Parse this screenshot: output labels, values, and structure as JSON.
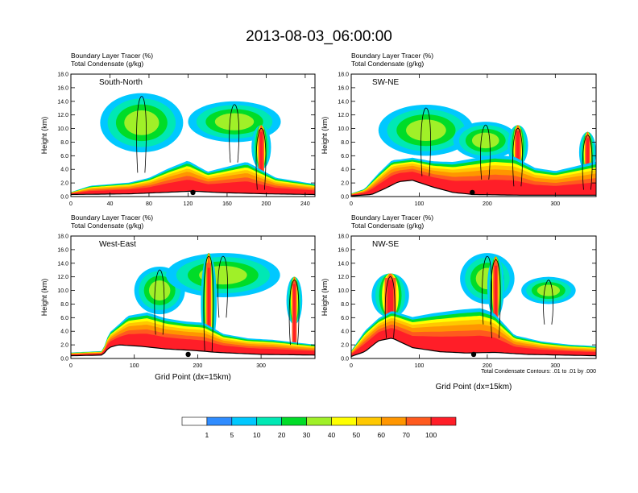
{
  "title": "2013-08-03_06:00:00",
  "panel_field_labels": [
    "Boundary Layer Tracer   (%)",
    "Total Condensate   (g/kg)"
  ],
  "contour_note": "Total Condensate Contours: .01 to .01 by .000",
  "colorbar": {
    "colors": [
      "#ffffff",
      "#2f8cff",
      "#00c8ff",
      "#00e8b4",
      "#00dc28",
      "#a0f028",
      "#ffff00",
      "#ffc800",
      "#ff9600",
      "#ff5a1e",
      "#ff1e28"
    ],
    "labels": [
      "1",
      "5",
      "10",
      "20",
      "30",
      "40",
      "50",
      "60",
      "70",
      "100"
    ]
  },
  "chart_data": [
    {
      "type": "heatmap",
      "name": "South-North",
      "ylabel": "Height (km)",
      "xlabel": "",
      "xlim": [
        0,
        250
      ],
      "ylim": [
        0,
        18
      ],
      "xticks": [
        0,
        40,
        80,
        120,
        160,
        200,
        240
      ],
      "yticks": [
        "0.0",
        "2.0",
        "4.0",
        "6.0",
        "8.0",
        "10.0",
        "12.0",
        "14.0",
        "16.0",
        "18.0"
      ],
      "terrain": [
        [
          0,
          0.3
        ],
        [
          60,
          0.4
        ],
        [
          110,
          0.7
        ],
        [
          125,
          0.8
        ],
        [
          150,
          0.6
        ],
        [
          200,
          0.4
        ],
        [
          250,
          0.3
        ]
      ],
      "bl_top": [
        [
          0,
          0.6
        ],
        [
          20,
          1.4
        ],
        [
          60,
          1.8
        ],
        [
          80,
          2.4
        ],
        [
          100,
          3.6
        ],
        [
          120,
          4.6
        ],
        [
          140,
          3.2
        ],
        [
          160,
          3.8
        ],
        [
          180,
          4.4
        ],
        [
          210,
          2.4
        ],
        [
          240,
          1.8
        ],
        [
          250,
          1.6
        ]
      ],
      "plumes": [
        {
          "x": [
            30,
            115
          ],
          "h": [
            6.5,
            15.2
          ],
          "shape": "dome"
        },
        {
          "x": [
            120,
            215
          ],
          "h": [
            8.0,
            14.0
          ],
          "shape": "dome"
        },
        {
          "x": [
            185,
            205
          ],
          "h": [
            4.0,
            10.5
          ],
          "shape": "tower"
        }
      ],
      "marker_x": 125
    },
    {
      "type": "heatmap",
      "name": "SW-NE",
      "ylabel": "Height (km)",
      "xlabel": "",
      "xlim": [
        0,
        360
      ],
      "ylim": [
        0,
        18
      ],
      "xticks": [
        0,
        100,
        200,
        300
      ],
      "yticks": [
        "0.0",
        "2.0",
        "4.0",
        "6.0",
        "8.0",
        "10.0",
        "12.0",
        "14.0",
        "16.0",
        "18.0"
      ],
      "terrain": [
        [
          0,
          0.1
        ],
        [
          30,
          0.3
        ],
        [
          50,
          1.2
        ],
        [
          70,
          2.2
        ],
        [
          90,
          2.4
        ],
        [
          120,
          1.4
        ],
        [
          150,
          0.6
        ],
        [
          180,
          0.3
        ],
        [
          250,
          0.2
        ],
        [
          360,
          0.2
        ]
      ],
      "bl_top": [
        [
          0,
          0.4
        ],
        [
          20,
          1.0
        ],
        [
          40,
          3.0
        ],
        [
          60,
          4.8
        ],
        [
          90,
          5.2
        ],
        [
          120,
          4.6
        ],
        [
          150,
          4.4
        ],
        [
          180,
          4.8
        ],
        [
          210,
          5.2
        ],
        [
          240,
          5.0
        ],
        [
          270,
          3.6
        ],
        [
          300,
          3.2
        ],
        [
          330,
          3.8
        ],
        [
          360,
          4.4
        ]
      ],
      "plumes": [
        {
          "x": [
            40,
            180
          ],
          "h": [
            6.0,
            13.5
          ],
          "shape": "dome"
        },
        {
          "x": [
            150,
            245
          ],
          "h": [
            5.5,
            11.0
          ],
          "shape": "dome"
        },
        {
          "x": [
            230,
            260
          ],
          "h": [
            4.5,
            10.5
          ],
          "shape": "tower"
        },
        {
          "x": [
            335,
            360
          ],
          "h": [
            3.5,
            9.5
          ],
          "shape": "tower"
        }
      ],
      "marker_x": 178
    },
    {
      "type": "heatmap",
      "name": "West-East",
      "ylabel": "Height (km)",
      "xlabel": "Grid Point (dx=15km)",
      "xlim": [
        0,
        385
      ],
      "ylim": [
        0,
        18
      ],
      "xticks": [
        0,
        100,
        200,
        300
      ],
      "yticks": [
        "0.0",
        "2.0",
        "4.0",
        "6.0",
        "8.0",
        "10.0",
        "12.0",
        "14.0",
        "16.0",
        "18.0"
      ],
      "terrain": [
        [
          0,
          0.4
        ],
        [
          50,
          0.5
        ],
        [
          60,
          1.6
        ],
        [
          75,
          2.0
        ],
        [
          110,
          1.8
        ],
        [
          150,
          1.4
        ],
        [
          190,
          1.2
        ],
        [
          230,
          0.9
        ],
        [
          300,
          0.6
        ],
        [
          385,
          0.5
        ]
      ],
      "bl_top": [
        [
          0,
          0.8
        ],
        [
          50,
          1.0
        ],
        [
          60,
          3.4
        ],
        [
          90,
          5.6
        ],
        [
          120,
          6.0
        ],
        [
          150,
          5.2
        ],
        [
          180,
          4.8
        ],
        [
          210,
          4.6
        ],
        [
          240,
          3.2
        ],
        [
          280,
          2.6
        ],
        [
          320,
          2.4
        ],
        [
          385,
          1.8
        ]
      ],
      "plumes": [
        {
          "x": [
            100,
            180
          ],
          "h": [
            6.5,
            13.5
          ],
          "shape": "dome"
        },
        {
          "x": [
            150,
            330
          ],
          "h": [
            9.0,
            15.5
          ],
          "shape": "dome"
        },
        {
          "x": [
            205,
            230
          ],
          "h": [
            1.0,
            15.5
          ],
          "shape": "tower"
        },
        {
          "x": [
            340,
            365
          ],
          "h": [
            5.0,
            12.0
          ],
          "shape": "tower"
        }
      ],
      "marker_x": 185
    },
    {
      "type": "heatmap",
      "name": "NW-SE",
      "ylabel": "Height (km)",
      "xlabel": "Grid Point (dx=15km)",
      "xlim": [
        0,
        360
      ],
      "ylim": [
        0,
        18
      ],
      "xticks": [
        0,
        100,
        200,
        300
      ],
      "yticks": [
        "0.0",
        "2.0",
        "4.0",
        "6.0",
        "8.0",
        "10.0",
        "12.0",
        "14.0",
        "16.0",
        "18.0"
      ],
      "terrain": [
        [
          0,
          0.3
        ],
        [
          20,
          1.0
        ],
        [
          40,
          2.6
        ],
        [
          60,
          3.0
        ],
        [
          90,
          1.6
        ],
        [
          130,
          1.0
        ],
        [
          170,
          0.8
        ],
        [
          210,
          0.9
        ],
        [
          260,
          0.6
        ],
        [
          360,
          0.4
        ]
      ],
      "bl_top": [
        [
          0,
          1.0
        ],
        [
          20,
          3.6
        ],
        [
          40,
          5.4
        ],
        [
          60,
          6.4
        ],
        [
          90,
          5.4
        ],
        [
          120,
          5.8
        ],
        [
          160,
          6.2
        ],
        [
          190,
          6.4
        ],
        [
          210,
          5.8
        ],
        [
          240,
          3.0
        ],
        [
          280,
          2.2
        ],
        [
          320,
          1.8
        ],
        [
          360,
          1.6
        ]
      ],
      "plumes": [
        {
          "x": [
            30,
            85
          ],
          "h": [
            6.0,
            12.5
          ],
          "shape": "tower"
        },
        {
          "x": [
            160,
            240
          ],
          "h": [
            8.0,
            15.5
          ],
          "shape": "dome"
        },
        {
          "x": [
            200,
            225
          ],
          "h": [
            6.0,
            15.0
          ],
          "shape": "tower"
        },
        {
          "x": [
            250,
            330
          ],
          "h": [
            8.0,
            12.0
          ],
          "shape": "dome"
        }
      ],
      "marker_x": 180
    }
  ]
}
